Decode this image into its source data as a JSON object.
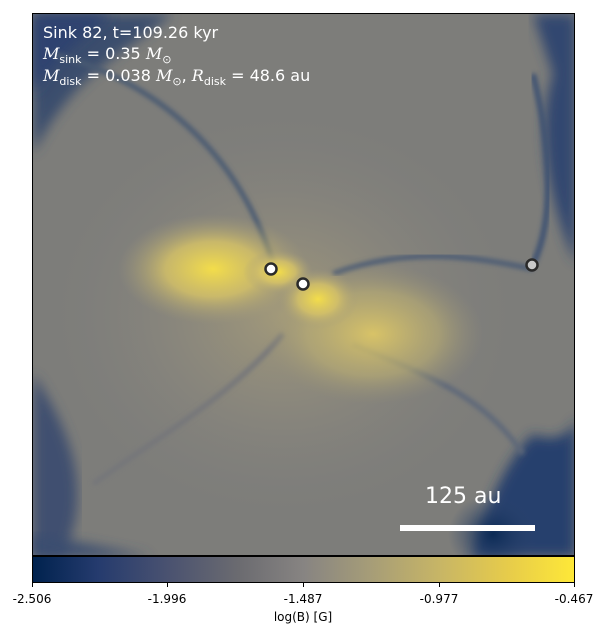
{
  "annotation": {
    "line1": "Sink 82, t=109.26 kyr",
    "msink_value": "0.35",
    "mdisk_value": "0.038",
    "rdisk_value": "48.6",
    "rdisk_unit": "au"
  },
  "scale_bar": {
    "label": "125 au"
  },
  "colorbar": {
    "label": "log(B) [G]",
    "ticks": [
      "-2.506",
      "-1.996",
      "-1.487",
      "-0.977",
      "-0.467"
    ],
    "colormap": "cividis"
  },
  "sinks": [
    {
      "name": "sink-particle-main"
    },
    {
      "name": "sink-particle-2"
    },
    {
      "name": "sink-particle-3"
    }
  ]
}
